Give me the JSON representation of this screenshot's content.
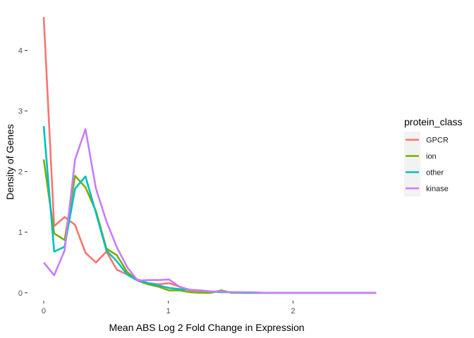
{
  "chart_data": {
    "type": "line",
    "xlabel": "Mean ABS Log 2 Fold Change in Expression",
    "ylabel": "Density of Genes",
    "xlim": [
      -0.13,
      2.75
    ],
    "ylim": [
      -0.13,
      4.75
    ],
    "x_ticks": [
      0,
      1,
      2
    ],
    "y_ticks": [
      0,
      1,
      2,
      3,
      4
    ],
    "grid": false,
    "legend": {
      "title": "protein_class",
      "position": "right"
    },
    "x": [
      0,
      0.0838,
      0.1676,
      0.2514,
      0.3353,
      0.4191,
      0.5029,
      0.5867,
      0.6705,
      0.7543,
      0.8382,
      0.922,
      1.0058,
      1.0896,
      1.1734,
      1.2572,
      1.3411,
      1.4249,
      1.5087,
      1.5925,
      1.6763,
      1.7601,
      1.844,
      1.9278,
      2.0116,
      2.0954,
      2.1792,
      2.263,
      2.3469,
      2.4307,
      2.5145,
      2.6675
    ],
    "series": [
      {
        "name": "GPCR",
        "color": "#F8766D",
        "values": [
          4.55,
          1.1,
          1.25,
          1.12,
          0.66,
          0.5,
          0.68,
          0.38,
          0.3,
          0.22,
          0.16,
          0.14,
          0.16,
          0.1,
          0.04,
          0.03,
          0.02,
          0.02,
          0.01,
          0.01,
          0.0,
          0.0,
          0.0,
          0.0,
          0.0,
          0.0,
          0.0,
          0.0,
          0.0,
          0.0,
          0.0,
          0.0
        ]
      },
      {
        "name": "ion",
        "color": "#7CAE00",
        "values": [
          2.2,
          0.98,
          0.87,
          1.93,
          1.74,
          1.35,
          0.73,
          0.62,
          0.34,
          0.2,
          0.14,
          0.1,
          0.04,
          0.04,
          0.01,
          0.0,
          0.0,
          0.04,
          0.0,
          0.0,
          0.0,
          0.0,
          0.0,
          0.0,
          0.0,
          0.0,
          0.0,
          0.0,
          0.0,
          0.0,
          0.0,
          0.0
        ]
      },
      {
        "name": "other",
        "color": "#00BFC4",
        "values": [
          2.75,
          0.68,
          0.76,
          1.72,
          1.92,
          1.32,
          0.7,
          0.52,
          0.3,
          0.2,
          0.16,
          0.12,
          0.08,
          0.06,
          0.05,
          0.04,
          0.02,
          0.01,
          0.01,
          0.0,
          0.0,
          0.0,
          0.0,
          0.0,
          0.0,
          0.0,
          0.0,
          0.0,
          0.0,
          0.0,
          0.0,
          0.0
        ]
      },
      {
        "name": "kinase",
        "color": "#C77CFF",
        "values": [
          0.5,
          0.29,
          0.7,
          2.2,
          2.7,
          1.72,
          1.18,
          0.75,
          0.42,
          0.2,
          0.21,
          0.21,
          0.22,
          0.1,
          0.05,
          0.04,
          0.02,
          0.02,
          0.01,
          0.01,
          0.01,
          0.0,
          0.0,
          0.0,
          0.0,
          0.0,
          0.0,
          0.0,
          0.0,
          0.0,
          0.0,
          0.0
        ]
      }
    ]
  }
}
